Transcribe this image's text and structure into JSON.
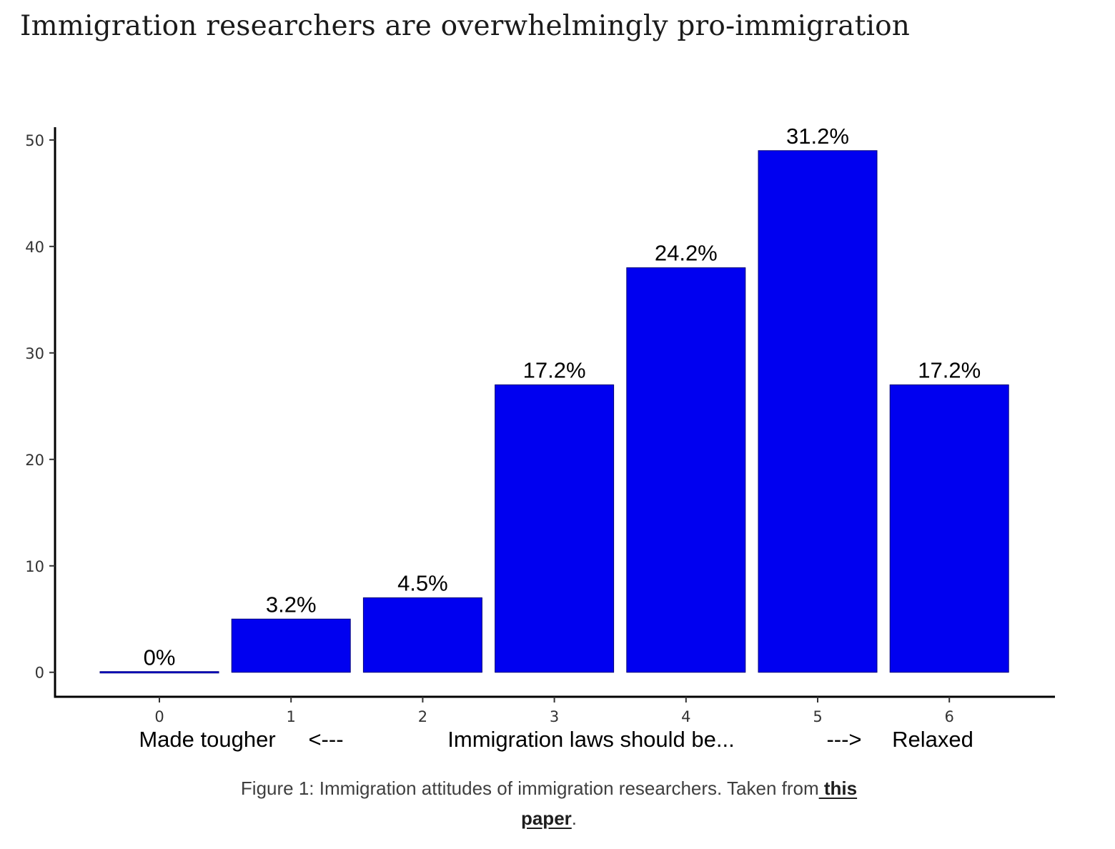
{
  "page": {
    "title": "Immigration researchers are overwhelmingly pro-immigration"
  },
  "chart_data": {
    "type": "bar",
    "title": "",
    "xlabel": "Immigration laws should be...",
    "ylabel": "",
    "categories": [
      "0",
      "1",
      "2",
      "3",
      "4",
      "5",
      "6"
    ],
    "values": [
      0,
      5,
      7,
      27,
      38,
      49,
      27
    ],
    "data_labels": [
      "0%",
      "3.2%",
      "4.5%",
      "17.2%",
      "24.2%",
      "31.2%",
      "17.2%"
    ],
    "ylim": [
      -2.3,
      51.2
    ],
    "yticks": [
      0,
      10,
      20,
      30,
      40,
      50
    ],
    "grid": false,
    "annotations": {
      "left_end": "Made tougher",
      "left_arrow": "<---",
      "center": "Immigration laws should be...",
      "right_arrow": "--->",
      "right_end": "Relaxed"
    },
    "colors": {
      "bar": "#0000f0",
      "bar_edge": "#00007a",
      "axis": "#000000",
      "text": "#000000"
    }
  },
  "caption": {
    "prefix": "Figure 1: Immigration attitudes of immigration researchers. Taken from",
    "link_part1": " this",
    "link_part2": "paper",
    "suffix": "."
  }
}
